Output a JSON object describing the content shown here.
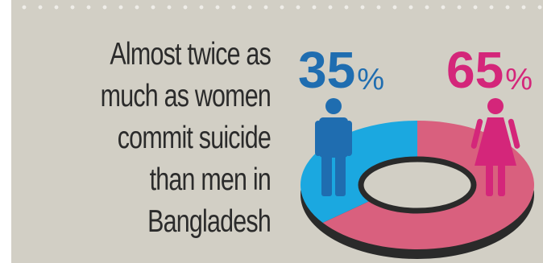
{
  "headline": {
    "lines": [
      "Almost twice as",
      "much as women",
      "commit suicide",
      "than men in",
      "Bangladesh"
    ]
  },
  "colors": {
    "background": "#d2cfc5",
    "men": "#1f6db0",
    "men_ring": "#1ba8e0",
    "women": "#d4267a",
    "women_ring": "#d9607e",
    "text": "#2b2b2b"
  },
  "chart_data": {
    "type": "pie",
    "title": "",
    "labels": [
      "",
      ""
    ],
    "values": [
      35,
      65
    ],
    "value_labels": [
      {
        "number": "35",
        "unit": "%"
      },
      {
        "number": "65",
        "unit": "%"
      }
    ],
    "icons": [
      "man-icon",
      "woman-icon"
    ],
    "style": "donut"
  }
}
